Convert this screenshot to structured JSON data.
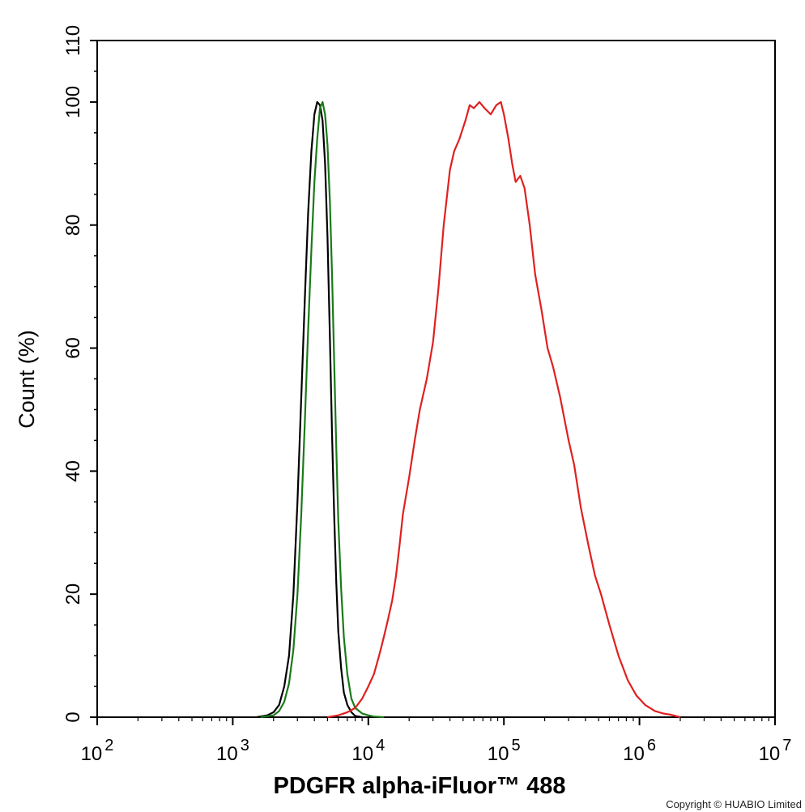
{
  "chart_data": {
    "type": "line",
    "xlabel": "PDGFR alpha-iFluor™ 488",
    "ylabel": "Count  (%)",
    "xscale": "log",
    "xlim": [
      100,
      10000000
    ],
    "ylim": [
      0,
      110
    ],
    "x_ticks": [
      {
        "value": 100,
        "base": "10",
        "exp": "2"
      },
      {
        "value": 1000,
        "base": "10",
        "exp": "3"
      },
      {
        "value": 10000,
        "base": "10",
        "exp": "4"
      },
      {
        "value": 100000,
        "base": "10",
        "exp": "5"
      },
      {
        "value": 1000000,
        "base": "10",
        "exp": "6"
      },
      {
        "value": 10000000,
        "base": "10",
        "exp": "7"
      }
    ],
    "y_ticks": [
      0,
      20,
      40,
      60,
      80,
      100,
      110
    ],
    "grid": false,
    "series": [
      {
        "color": "#000000",
        "points": [
          [
            1500,
            0
          ],
          [
            1800,
            0.3
          ],
          [
            2000,
            0.8
          ],
          [
            2200,
            2
          ],
          [
            2400,
            5
          ],
          [
            2600,
            10
          ],
          [
            2800,
            20
          ],
          [
            3000,
            35
          ],
          [
            3200,
            52
          ],
          [
            3400,
            68
          ],
          [
            3600,
            82
          ],
          [
            3800,
            92
          ],
          [
            4000,
            98
          ],
          [
            4200,
            100
          ],
          [
            4400,
            99.5
          ],
          [
            4600,
            97
          ],
          [
            4800,
            90
          ],
          [
            5000,
            78
          ],
          [
            5200,
            62
          ],
          [
            5400,
            46
          ],
          [
            5600,
            33
          ],
          [
            5800,
            22
          ],
          [
            6000,
            14
          ],
          [
            6300,
            8
          ],
          [
            6600,
            4
          ],
          [
            7000,
            2
          ],
          [
            7500,
            0.8
          ],
          [
            8000,
            0.2
          ],
          [
            9000,
            0
          ]
        ]
      },
      {
        "color": "#1a7a1a",
        "points": [
          [
            1600,
            0
          ],
          [
            2000,
            0.3
          ],
          [
            2200,
            1
          ],
          [
            2400,
            2.5
          ],
          [
            2600,
            5.5
          ],
          [
            2800,
            11
          ],
          [
            3000,
            20
          ],
          [
            3200,
            33
          ],
          [
            3400,
            48
          ],
          [
            3600,
            63
          ],
          [
            3800,
            76
          ],
          [
            4000,
            87
          ],
          [
            4200,
            94
          ],
          [
            4400,
            99
          ],
          [
            4600,
            100
          ],
          [
            4800,
            98
          ],
          [
            5000,
            93
          ],
          [
            5200,
            84
          ],
          [
            5400,
            72
          ],
          [
            5600,
            58
          ],
          [
            5800,
            44
          ],
          [
            6000,
            32
          ],
          [
            6300,
            21
          ],
          [
            6600,
            13
          ],
          [
            7000,
            7
          ],
          [
            7500,
            3
          ],
          [
            8000,
            1.5
          ],
          [
            9000,
            0.6
          ],
          [
            10000,
            0.3
          ],
          [
            11000,
            0.1
          ],
          [
            13000,
            0
          ]
        ]
      },
      {
        "color": "#e02020",
        "points": [
          [
            5000,
            0
          ],
          [
            6000,
            0.3
          ],
          [
            7000,
            0.8
          ],
          [
            8000,
            1.5
          ],
          [
            9000,
            3
          ],
          [
            10000,
            5
          ],
          [
            11000,
            7
          ],
          [
            12000,
            10
          ],
          [
            13000,
            13
          ],
          [
            14000,
            16
          ],
          [
            15000,
            19
          ],
          [
            16000,
            23
          ],
          [
            17000,
            28
          ],
          [
            18000,
            33
          ],
          [
            20000,
            39
          ],
          [
            22000,
            45
          ],
          [
            24000,
            50
          ],
          [
            27000,
            55
          ],
          [
            30000,
            61
          ],
          [
            33000,
            70
          ],
          [
            36000,
            80
          ],
          [
            40000,
            89
          ],
          [
            43000,
            92
          ],
          [
            47000,
            94
          ],
          [
            52000,
            97
          ],
          [
            56000,
            99.5
          ],
          [
            60000,
            99
          ],
          [
            66000,
            100
          ],
          [
            72000,
            99
          ],
          [
            80000,
            98
          ],
          [
            88000,
            99.5
          ],
          [
            95000,
            100
          ],
          [
            100000,
            98
          ],
          [
            108000,
            94
          ],
          [
            115000,
            90
          ],
          [
            122000,
            87
          ],
          [
            132000,
            88
          ],
          [
            142000,
            86
          ],
          [
            155000,
            80
          ],
          [
            170000,
            72
          ],
          [
            190000,
            66
          ],
          [
            210000,
            60
          ],
          [
            230000,
            57
          ],
          [
            260000,
            52
          ],
          [
            300000,
            45
          ],
          [
            330000,
            41
          ],
          [
            370000,
            34
          ],
          [
            420000,
            28
          ],
          [
            470000,
            23
          ],
          [
            520000,
            20
          ],
          [
            600000,
            15
          ],
          [
            700000,
            10
          ],
          [
            820000,
            6
          ],
          [
            950000,
            3.5
          ],
          [
            1100000,
            2
          ],
          [
            1300000,
            1
          ],
          [
            1500000,
            0.6
          ],
          [
            1700000,
            0.4
          ],
          [
            2000000,
            0
          ]
        ]
      }
    ]
  },
  "copyright": "Copyright © HUABIO Limited"
}
